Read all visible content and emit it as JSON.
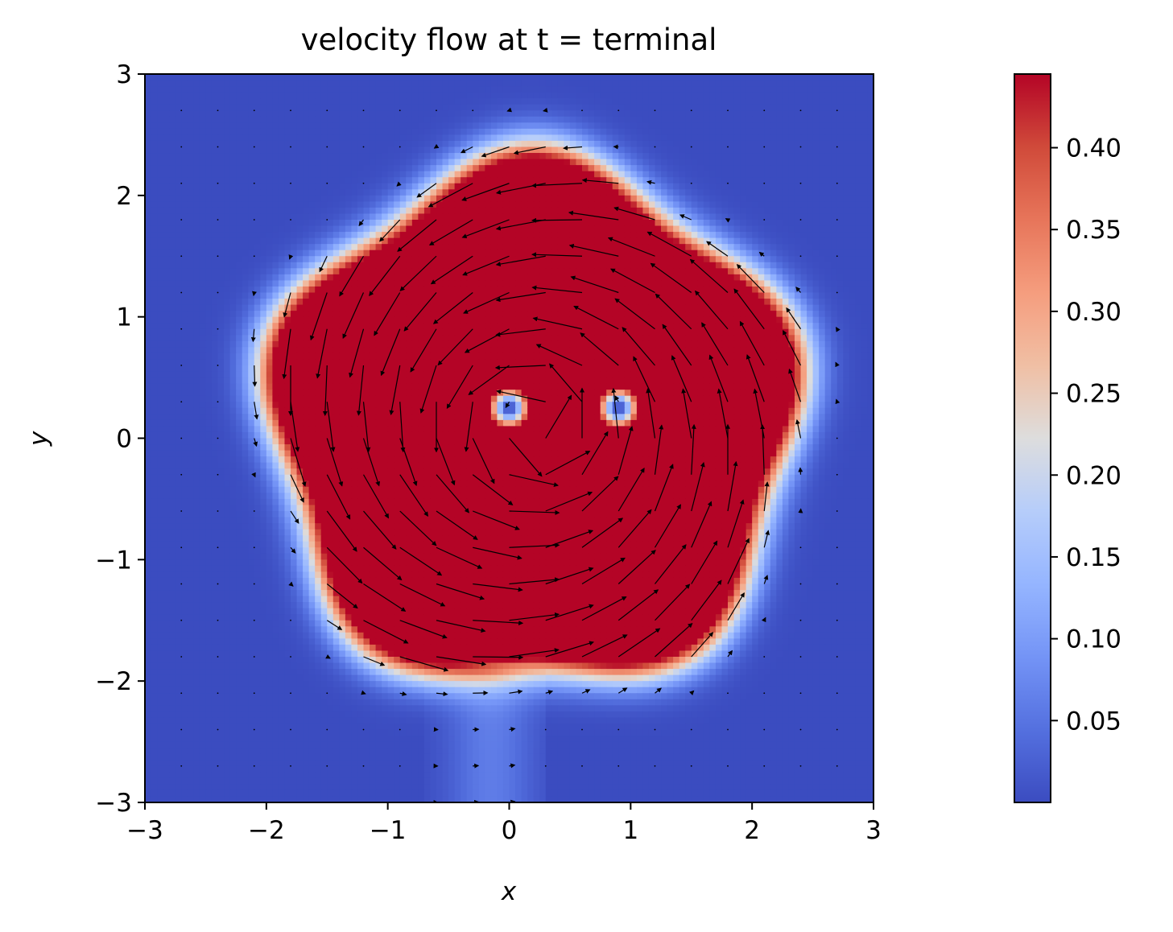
{
  "chart_data": {
    "type": "heatmap",
    "title": "velocity flow at t = terminal",
    "xlabel": "x",
    "ylabel": "y",
    "xlim": [
      -3,
      3
    ],
    "ylim": [
      -3,
      3
    ],
    "x_ticks": [
      {
        "value": -3,
        "label": "−3"
      },
      {
        "value": -2,
        "label": "−2"
      },
      {
        "value": -1,
        "label": "−1"
      },
      {
        "value": 0,
        "label": "0"
      },
      {
        "value": 1,
        "label": "1"
      },
      {
        "value": 2,
        "label": "2"
      },
      {
        "value": 3,
        "label": "3"
      }
    ],
    "y_ticks": [
      {
        "value": -3,
        "label": "−3"
      },
      {
        "value": -2,
        "label": "−2"
      },
      {
        "value": -1,
        "label": "−1"
      },
      {
        "value": 0,
        "label": "0"
      },
      {
        "value": 1,
        "label": "1"
      },
      {
        "value": 2,
        "label": "2"
      },
      {
        "value": 3,
        "label": "3"
      }
    ],
    "colorbar": {
      "colormap": "coolwarm",
      "vmin": 0.0,
      "vmax": 0.445,
      "ticks": [
        {
          "value": 0.05,
          "label": "0.05"
        },
        {
          "value": 0.1,
          "label": "0.10"
        },
        {
          "value": 0.15,
          "label": "0.15"
        },
        {
          "value": 0.2,
          "label": "0.20"
        },
        {
          "value": 0.25,
          "label": "0.25"
        },
        {
          "value": 0.3,
          "label": "0.30"
        },
        {
          "value": 0.35,
          "label": "0.35"
        },
        {
          "value": 0.4,
          "label": "0.40"
        }
      ]
    },
    "field": {
      "description": "speed magnitude |v| on 120x120 grid over [-3,3]^2; counter-clockwise vortex ring",
      "vortex_center": [
        0.2,
        0.1
      ],
      "ring_outer_radius": 2.1,
      "core_speed_cap": 0.445,
      "low_speed_spots": [
        [
          0.0,
          0.25
        ],
        [
          0.9,
          0.25
        ]
      ],
      "trail": {
        "x": [
          -0.3,
          0.0
        ],
        "y_range": [
          -3,
          -2
        ]
      }
    },
    "quiver": {
      "grid_x": [
        -3,
        -2.7,
        -2.4,
        -2.1,
        -1.8,
        -1.5,
        -1.2,
        -0.9,
        -0.6,
        -0.3,
        0,
        0.3,
        0.6,
        0.9,
        1.2,
        1.5,
        1.8,
        2.1,
        2.4,
        2.7,
        3
      ],
      "grid_y": [
        -3,
        -2.7,
        -2.4,
        -2.1,
        -1.8,
        -1.5,
        -1.2,
        -0.9,
        -0.6,
        -0.3,
        0,
        0.3,
        0.6,
        0.9,
        1.2,
        1.5,
        1.8,
        2.1,
        2.4,
        2.7,
        3
      ],
      "rotation": "counter-clockwise"
    },
    "grid": false
  }
}
